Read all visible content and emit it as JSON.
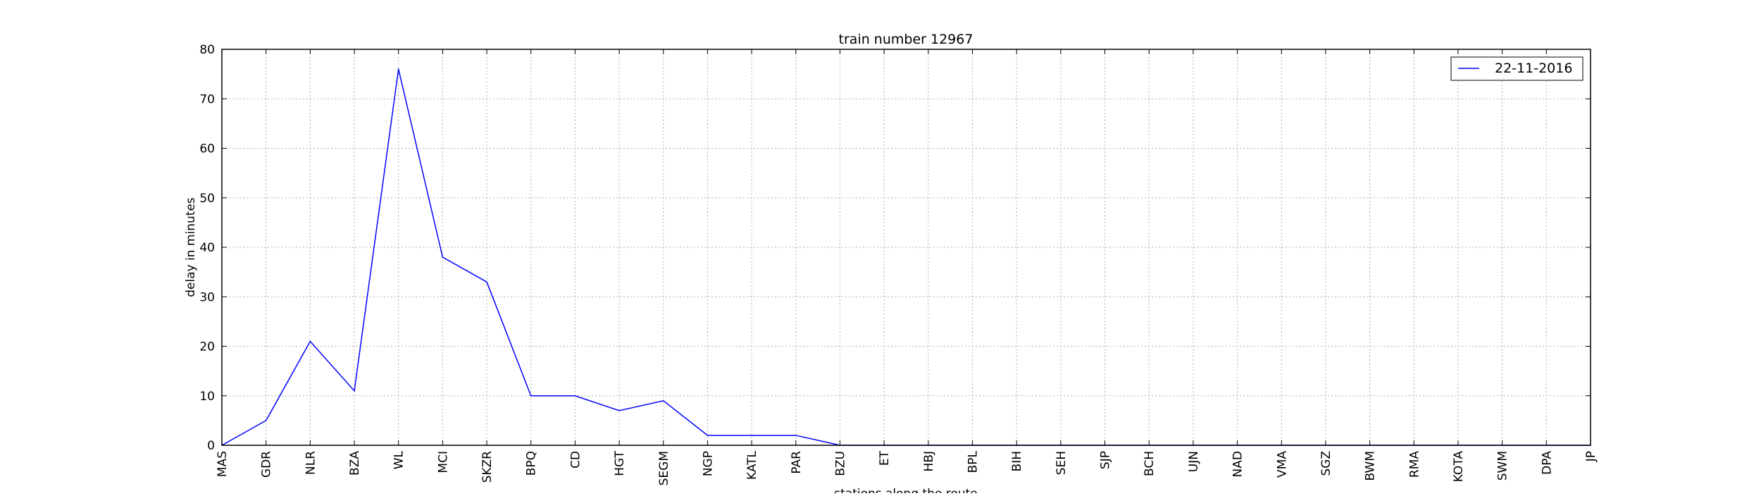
{
  "chart_data": {
    "type": "line",
    "title": "train number 12967",
    "xlabel": "stations along the route",
    "ylabel": "delay in minutes",
    "categories": [
      "MAS",
      "GDR",
      "NLR",
      "BZA",
      "WL",
      "MCI",
      "SKZR",
      "BPQ",
      "CD",
      "HGT",
      "SEGM",
      "NGP",
      "KATL",
      "PAR",
      "BZU",
      "ET",
      "HBJ",
      "BPL",
      "BIH",
      "SEH",
      "SJP",
      "BCH",
      "UJN",
      "NAD",
      "VMA",
      "SGZ",
      "BWM",
      "RMA",
      "KOTA",
      "SWM",
      "DPA",
      "JP"
    ],
    "series": [
      {
        "name": "22-11-2016",
        "color": "#0000ff",
        "values": [
          0,
          5,
          21,
          11,
          76,
          38,
          33,
          10,
          10,
          7,
          9,
          2,
          2,
          2,
          0,
          0,
          0,
          0,
          0,
          0,
          0,
          0,
          0,
          0,
          0,
          0,
          0,
          0,
          0,
          0,
          0,
          0
        ]
      }
    ],
    "ylim": [
      0,
      80
    ],
    "yticks": [
      0,
      10,
      20,
      30,
      40,
      50,
      60,
      70,
      80
    ],
    "grid": true,
    "legend_position": "top-right"
  }
}
